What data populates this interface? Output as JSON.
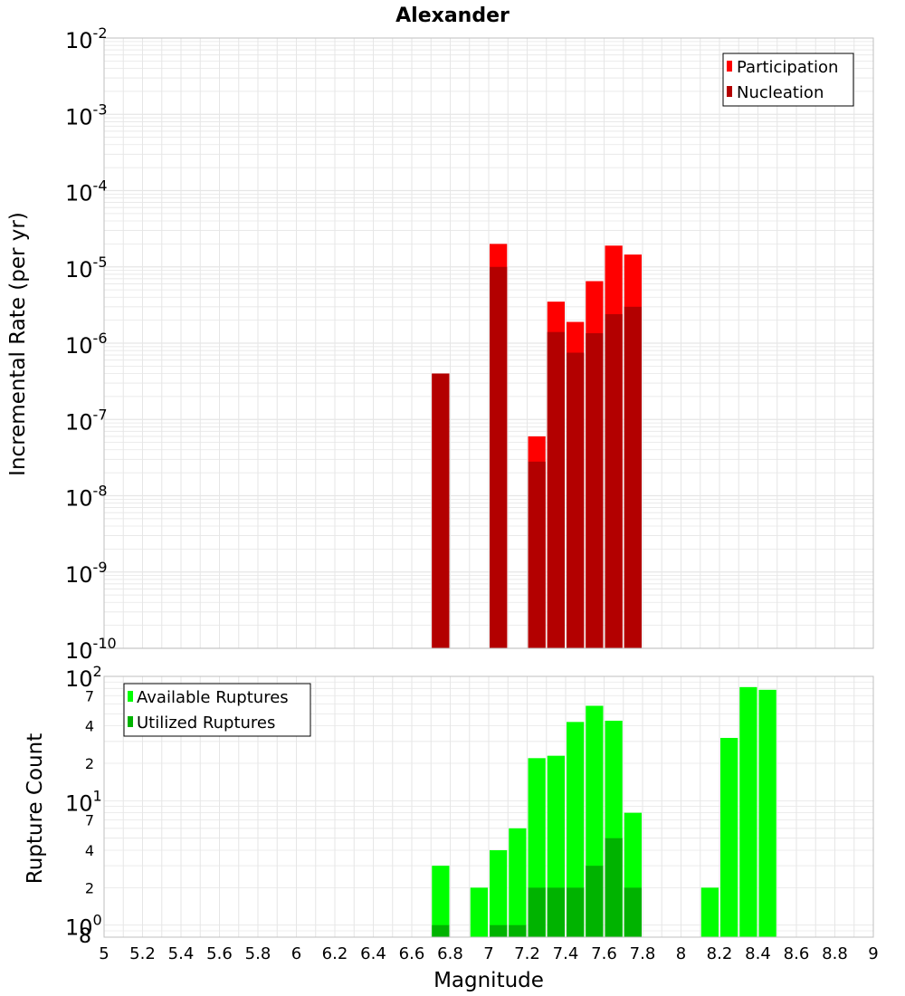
{
  "title": "Alexander",
  "xlabel": "Magnitude",
  "colors": {
    "participation": "#ff0000",
    "nucleation": "#b30000",
    "available": "#00ff00",
    "utilized": "#00b300",
    "grid": "#e6e6e6",
    "frame": "#bfbfbf"
  },
  "chart_data": [
    {
      "type": "bar",
      "ylabel": "Incremental Rate (per yr)",
      "yscale": "log",
      "ylim": [
        1e-10,
        0.01
      ],
      "xlim": [
        5,
        9
      ],
      "grid": true,
      "legend_position": "top-right",
      "series": [
        {
          "name": "Participation",
          "x": [
            6.75,
            7.05,
            7.25,
            7.35,
            7.45,
            7.55,
            7.65,
            7.75
          ],
          "values": [
            4e-07,
            2e-05,
            6e-08,
            3.5e-06,
            1.9e-06,
            6.5e-06,
            1.9e-05,
            1.45e-05
          ]
        },
        {
          "name": "Nucleation",
          "x": [
            6.75,
            7.05,
            7.25,
            7.35,
            7.45,
            7.55,
            7.65,
            7.75
          ],
          "values": [
            4e-07,
            1e-05,
            2.8e-08,
            1.4e-06,
            7.5e-07,
            1.35e-06,
            2.4e-06,
            3e-06
          ]
        }
      ]
    },
    {
      "type": "bar",
      "ylabel": "Rupture Count",
      "yscale": "log",
      "ylim": [
        0.8,
        100
      ],
      "xlim": [
        5,
        9
      ],
      "grid": true,
      "legend_position": "top-left",
      "series": [
        {
          "name": "Available Ruptures",
          "x": [
            6.75,
            6.95,
            7.05,
            7.15,
            7.25,
            7.35,
            7.45,
            7.55,
            7.65,
            7.75,
            8.15,
            8.25,
            8.35,
            8.45
          ],
          "values": [
            3,
            2,
            4,
            6,
            22,
            23,
            43,
            58,
            44,
            8,
            2,
            32,
            82,
            78
          ]
        },
        {
          "name": "Utilized Ruptures",
          "x": [
            6.75,
            7.05,
            7.15,
            7.25,
            7.35,
            7.45,
            7.55,
            7.65,
            7.75
          ],
          "values": [
            1,
            1,
            1,
            2,
            2,
            2,
            3,
            5,
            2
          ]
        }
      ]
    }
  ],
  "x_ticks": [
    "5",
    "5.2",
    "5.4",
    "5.6",
    "5.8",
    "6",
    "6.2",
    "6.4",
    "6.6",
    "6.8",
    "7",
    "7.2",
    "7.4",
    "7.6",
    "7.8",
    "8",
    "8.2",
    "8.4",
    "8.6",
    "8.8",
    "9"
  ],
  "top_y_ticks": [
    {
      "base": "10",
      "exp": "-2"
    },
    {
      "base": "10",
      "exp": "-3"
    },
    {
      "base": "10",
      "exp": "-4"
    },
    {
      "base": "10",
      "exp": "-5"
    },
    {
      "base": "10",
      "exp": "-6"
    },
    {
      "base": "10",
      "exp": "-7"
    },
    {
      "base": "10",
      "exp": "-8"
    },
    {
      "base": "10",
      "exp": "-9"
    },
    {
      "base": "10",
      "exp": "-10"
    }
  ],
  "bottom_y_ticks": {
    "major": [
      {
        "base": "10",
        "exp": "2"
      },
      {
        "base": "10",
        "exp": "1"
      },
      {
        "base": "10",
        "exp": "0"
      }
    ],
    "minor": [
      "7",
      "4",
      "2",
      "7",
      "4",
      "2",
      "8"
    ]
  }
}
